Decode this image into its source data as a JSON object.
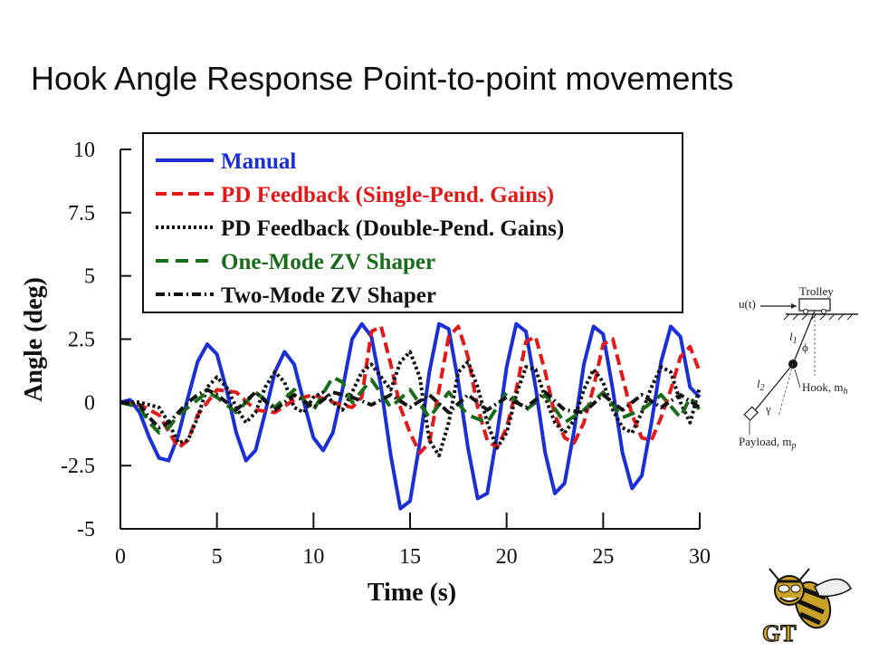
{
  "slide": {
    "title": "Hook Angle Response Point-to-point movements"
  },
  "chart_data": {
    "type": "line",
    "title": "",
    "xlabel": "Time (s)",
    "ylabel": "Angle (deg)",
    "xlim": [
      0,
      30
    ],
    "ylim": [
      -5,
      10
    ],
    "x_ticks": [
      0,
      5,
      10,
      15,
      20,
      25,
      30
    ],
    "x_tick_labels": [
      "0",
      "5",
      "10",
      "15",
      "20",
      "25",
      "30"
    ],
    "y_ticks": [
      -5,
      -2.5,
      0,
      2.5,
      5,
      7.5,
      10
    ],
    "y_tick_labels": [
      "-5",
      "-2.5",
      "0",
      "2.5",
      "5",
      "7.5",
      "10"
    ],
    "grid": false,
    "legend_position": "top-left",
    "series": [
      {
        "name": "Manual",
        "color": "#1a2fd6",
        "dash": "solid",
        "x": [
          0,
          0.5,
          1,
          1.5,
          2,
          2.5,
          3,
          3.5,
          4,
          4.5,
          5,
          5.5,
          6,
          6.5,
          7,
          7.5,
          8,
          8.5,
          9,
          9.5,
          10,
          10.5,
          11,
          11.5,
          12,
          12.5,
          13,
          13.5,
          14,
          14.5,
          15,
          15.5,
          16,
          16.5,
          17,
          17.5,
          18,
          18.5,
          19,
          19.5,
          20,
          20.5,
          21,
          21.5,
          22,
          22.5,
          23,
          23.5,
          24,
          24.5,
          25,
          25.5,
          26,
          26.5,
          27,
          27.5,
          28,
          28.5,
          29,
          29.5,
          30
        ],
        "y": [
          0,
          0.1,
          -0.4,
          -1.4,
          -2.2,
          -2.3,
          -1.3,
          0.2,
          1.6,
          2.3,
          1.9,
          0.5,
          -1.2,
          -2.3,
          -1.9,
          -0.4,
          1.2,
          2.0,
          1.5,
          0,
          -1.4,
          -1.9,
          -1.2,
          0.5,
          2.5,
          3.1,
          2.6,
          0.6,
          -2.1,
          -4.2,
          -3.9,
          -1.6,
          1.2,
          3.1,
          2.9,
          0.8,
          -1.8,
          -3.8,
          -3.6,
          -1.3,
          1.4,
          3.1,
          2.8,
          0.6,
          -2.0,
          -3.6,
          -3.2,
          -1.1,
          1.5,
          3.0,
          2.7,
          0.5,
          -2.0,
          -3.4,
          -2.9,
          -0.8,
          1.6,
          3.0,
          2.6,
          0.6,
          0.2
        ]
      },
      {
        "name": "PD Feedback (Single-Pend. Gains)",
        "color": "#e01a1a",
        "dash": "12,6",
        "x": [
          0,
          1,
          2,
          3,
          3.5,
          4,
          5,
          6,
          7,
          8,
          9,
          10,
          11,
          12,
          12.5,
          13,
          13.5,
          14,
          14.5,
          15,
          15.5,
          16,
          16.5,
          17,
          17.5,
          18,
          18.5,
          19,
          19.5,
          20,
          20.5,
          21,
          21.5,
          22,
          22.5,
          23,
          23.5,
          24,
          24.5,
          25,
          25.5,
          26,
          26.5,
          27,
          27.5,
          28,
          28.5,
          29,
          29.5,
          30
        ],
        "y": [
          0,
          -0.1,
          -0.5,
          -1.8,
          -1.5,
          -0.5,
          0.5,
          0.4,
          -0.3,
          -0.4,
          0.1,
          0.3,
          0,
          -0.2,
          0.2,
          2.8,
          3.0,
          1.5,
          -0.2,
          -1.2,
          -2.0,
          -1.6,
          0.5,
          2.6,
          3.0,
          1.8,
          -0.2,
          -1.5,
          -1.8,
          -1.0,
          0.5,
          2.4,
          2.6,
          1.2,
          -0.5,
          -1.4,
          -1.6,
          -0.8,
          0.6,
          2.3,
          2.5,
          1.0,
          -0.5,
          -1.4,
          -1.5,
          -0.6,
          0.5,
          1.8,
          2.2,
          1.2
        ]
      },
      {
        "name": "PD Feedback (Double-Pend. Gains)",
        "color": "#111111",
        "dash": "3,3",
        "x": [
          0,
          1,
          2,
          2.5,
          3,
          3.5,
          4,
          4.5,
          5,
          5.5,
          6,
          6.5,
          7,
          7.5,
          8,
          8.5,
          9,
          9.5,
          10,
          10.5,
          11,
          11.5,
          12,
          12.5,
          13,
          13.5,
          14,
          14.5,
          15,
          15.5,
          16,
          16.5,
          17,
          17.5,
          18,
          18.5,
          19,
          19.5,
          20,
          20.5,
          21,
          21.5,
          22,
          22.5,
          23,
          23.5,
          24,
          24.5,
          25,
          25.5,
          26,
          26.5,
          27,
          27.5,
          28,
          28.5,
          29,
          29.5,
          30
        ],
        "y": [
          0,
          0,
          -0.2,
          -0.8,
          -1.6,
          -1.5,
          -0.6,
          0.6,
          1.0,
          0.6,
          -0.2,
          -0.8,
          -0.4,
          0.6,
          1.2,
          0.8,
          -0.2,
          -0.4,
          0.2,
          0.4,
          0,
          -0.3,
          0.4,
          1.2,
          1.5,
          1.0,
          0.5,
          1.6,
          2.0,
          1.0,
          -1.5,
          -2.1,
          -0.8,
          1.2,
          1.6,
          0.6,
          -0.8,
          -1.8,
          -1.2,
          0.3,
          1.4,
          1.3,
          0.2,
          -0.8,
          -1.2,
          -0.7,
          0.5,
          1.3,
          0.8,
          -0.3,
          -1.0,
          -1.2,
          -0.4,
          0.6,
          1.4,
          1.2,
          0,
          -0.8,
          0.6
        ]
      },
      {
        "name": "One-Mode ZV Shaper",
        "color": "#1a6b1a",
        "dash": "14,8",
        "x": [
          0,
          1,
          1.5,
          2,
          2.5,
          3,
          3.5,
          4,
          4.5,
          5,
          6,
          7,
          8,
          9,
          10,
          11,
          11.5,
          12,
          13,
          14,
          15,
          16,
          17,
          18,
          19,
          20,
          21,
          22,
          23,
          24,
          25,
          26,
          27,
          28,
          29,
          29.5,
          30
        ],
        "y": [
          0,
          -0.2,
          -0.8,
          -1.2,
          -1.0,
          -0.5,
          -0.2,
          0.1,
          0.4,
          0.2,
          -0.4,
          0.4,
          -0.2,
          0.5,
          -0.3,
          1.0,
          0.8,
          0,
          0.9,
          -0.2,
          0.5,
          -0.6,
          0.4,
          -0.5,
          -0.8,
          0.4,
          -0.3,
          0.3,
          -0.8,
          -0.3,
          0.4,
          -0.6,
          -0.3,
          0.3,
          -0.6,
          0.2,
          -0.3
        ]
      },
      {
        "name": "Two-Mode ZV Shaper",
        "color": "#111111",
        "dash": "10,4,2,4",
        "x": [
          0,
          1,
          1.5,
          2,
          2.5,
          3,
          3.5,
          4,
          4.5,
          5,
          6,
          7,
          8,
          9,
          10,
          11,
          12,
          13,
          14,
          15,
          16,
          17,
          18,
          19,
          20,
          21,
          22,
          23,
          24,
          25,
          26,
          27,
          28,
          29,
          30
        ],
        "y": [
          0,
          -0.1,
          -0.6,
          -1.0,
          -0.8,
          -0.4,
          0,
          0.3,
          0.5,
          0.3,
          -0.3,
          0.4,
          -0.3,
          0.3,
          -0.2,
          0.4,
          0.2,
          -0.1,
          0.3,
          -0.2,
          0.3,
          -0.4,
          0.3,
          -0.3,
          0.2,
          -0.2,
          0.4,
          -0.3,
          -0.4,
          0.3,
          -0.3,
          0.3,
          -0.2,
          0.3,
          -0.2
        ]
      }
    ]
  },
  "diagram": {
    "input_label": "u(t)",
    "trolley_label": "Trolley",
    "l1_label": "l",
    "l1_sub": "1",
    "phi_label": "ϕ",
    "hook_label": "Hook, m",
    "hook_sub": "h",
    "l2_label": "l",
    "l2_sub": "2",
    "gamma_label": "γ",
    "payload_label": "Payload, m",
    "payload_sub": "p"
  },
  "logo": {
    "text": "GT",
    "primary_color": "#c9a227",
    "secondary_color": "#111111"
  }
}
